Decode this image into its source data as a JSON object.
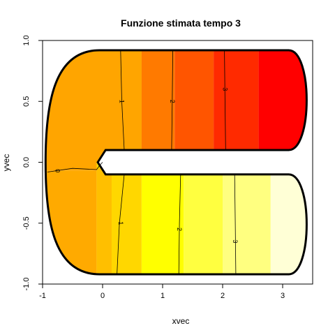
{
  "chart_data": {
    "type": "filled-contour",
    "title": "Funzione stimata tempo 3",
    "xlabel": "xvec",
    "ylabel": "yvec",
    "xlim": [
      -1.0,
      3.5
    ],
    "ylim": [
      -1.0,
      1.0
    ],
    "xticks": [
      -1,
      0,
      1,
      2,
      3
    ],
    "xtick_labels": [
      "-1",
      "0",
      "1",
      "2",
      "3"
    ],
    "yticks": [
      -1.0,
      -0.5,
      0.0,
      0.5,
      1.0
    ],
    "ytick_labels": [
      "-1.0",
      "-0.5",
      "0.0",
      "0.5",
      "1.0"
    ],
    "domain": "horseshoe",
    "upper_arm_bands": [
      {
        "x0": -0.1,
        "x1": 0.65,
        "color": "#FFA500"
      },
      {
        "x0": 0.65,
        "x1": 1.2,
        "color": "#FF7A00"
      },
      {
        "x0": 1.2,
        "x1": 1.85,
        "color": "#FF5500"
      },
      {
        "x0": 1.85,
        "x1": 2.6,
        "color": "#FF2A00"
      },
      {
        "x0": 2.6,
        "x1": 3.5,
        "color": "#FF0000"
      }
    ],
    "lower_arm_bands": [
      {
        "x0": -0.1,
        "x1": 0.65,
        "color": "#FFD700"
      },
      {
        "x0": 0.65,
        "x1": 1.35,
        "color": "#FFFF00"
      },
      {
        "x0": 1.35,
        "x1": 2.0,
        "color": "#FFFF40"
      },
      {
        "x0": 2.0,
        "x1": 2.8,
        "color": "#FFFF80"
      },
      {
        "x0": 2.8,
        "x1": 3.5,
        "color": "#FFFFD6"
      }
    ],
    "contour_lines": [
      {
        "level": "0",
        "points": [
          [
            -0.92,
            -0.08
          ],
          [
            -0.5,
            -0.05
          ],
          [
            -0.1,
            -0.06
          ],
          [
            -0.04,
            -0.02
          ],
          [
            0.0,
            0.0
          ]
        ]
      },
      {
        "level": "1",
        "points": [
          [
            0.3,
            0.92
          ],
          [
            0.32,
            0.5
          ],
          [
            0.36,
            0.1
          ]
        ]
      },
      {
        "level": "1",
        "points": [
          [
            0.36,
            -0.1
          ],
          [
            0.28,
            -0.5
          ],
          [
            0.24,
            -0.92
          ]
        ]
      },
      {
        "level": "2",
        "points": [
          [
            1.17,
            0.92
          ],
          [
            1.16,
            0.5
          ],
          [
            1.15,
            0.1
          ]
        ]
      },
      {
        "level": "2",
        "points": [
          [
            1.3,
            -0.1
          ],
          [
            1.28,
            -0.5
          ],
          [
            1.27,
            -0.92
          ]
        ]
      },
      {
        "level": "3",
        "points": [
          [
            2.03,
            0.92
          ],
          [
            2.04,
            0.5
          ],
          [
            2.05,
            0.1
          ]
        ]
      },
      {
        "level": "3",
        "points": [
          [
            2.2,
            -0.1
          ],
          [
            2.21,
            -0.5
          ],
          [
            2.22,
            -0.92
          ]
        ]
      }
    ],
    "contour_label_positions": [
      {
        "label": "0",
        "x": -0.75,
        "y": -0.07
      },
      {
        "label": "1",
        "x": 0.32,
        "y": 0.5
      },
      {
        "label": "1",
        "x": 0.3,
        "y": -0.5
      },
      {
        "label": "2",
        "x": 1.16,
        "y": 0.5
      },
      {
        "label": "2",
        "x": 1.28,
        "y": -0.55
      },
      {
        "label": "3",
        "x": 2.04,
        "y": 0.6
      },
      {
        "label": "3",
        "x": 2.21,
        "y": -0.65
      }
    ],
    "grid": false,
    "legend": "none"
  }
}
